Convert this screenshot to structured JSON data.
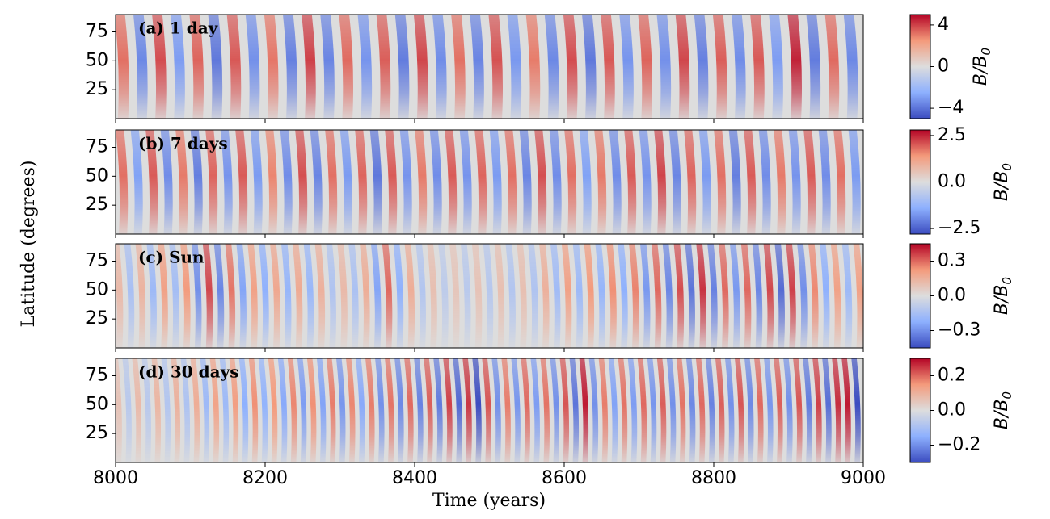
{
  "chart_data": [
    {
      "type": "heatmap",
      "title": "(a) 1 day",
      "x": [
        8010,
        8035,
        8060,
        8085,
        8110,
        8135,
        8160,
        8185,
        8210,
        8235,
        8260,
        8285,
        8310,
        8335,
        8360,
        8385,
        8410,
        8435,
        8460,
        8485,
        8510,
        8535,
        8560,
        8585,
        8610,
        8635,
        8660,
        8685,
        8710,
        8735,
        8760,
        8785,
        8810,
        8835,
        8860,
        8885,
        8910,
        8935,
        8960,
        8985
      ],
      "values": [
        3.2,
        -3.5,
        3.8,
        -3.0,
        3.4,
        -3.9,
        3.6,
        -3.3,
        3.1,
        -3.7,
        4.0,
        -3.6,
        3.3,
        -3.2,
        3.5,
        -3.8,
        3.9,
        -3.4,
        3.2,
        -3.6,
        3.7,
        -3.1,
        3.0,
        -3.5,
        3.8,
        -3.9,
        3.6,
        -3.2,
        3.4,
        -3.3,
        3.9,
        -3.7,
        3.5,
        -3.4,
        3.6,
        -3.0,
        4.5,
        -3.8,
        3.3,
        -3.5
      ],
      "xlim": [
        8000,
        9000
      ],
      "xticks": [
        8000,
        8200,
        8400,
        8600,
        8800,
        9000
      ],
      "xticklabels": false,
      "ylim": [
        0,
        90
      ],
      "yticks": [
        25,
        50,
        75
      ],
      "clim": [
        -5,
        5
      ],
      "cticks": [
        {
          "value": -4,
          "label": "−4"
        },
        0,
        4
      ],
      "clabel": "B/B",
      "clabel_sub": "0",
      "colormap": [
        "#3b4cc0",
        "#8db0fe",
        "#dddddd",
        "#f49a7b",
        "#b40426"
      ]
    },
    {
      "type": "heatmap",
      "title": "(b) 7 days",
      "x": [
        8010,
        8030,
        8050,
        8070,
        8090,
        8110,
        8130,
        8150,
        8170,
        8190,
        8210,
        8230,
        8250,
        8270,
        8290,
        8310,
        8330,
        8350,
        8370,
        8390,
        8410,
        8430,
        8450,
        8470,
        8490,
        8510,
        8530,
        8550,
        8570,
        8590,
        8610,
        8630,
        8650,
        8670,
        8690,
        8710,
        8730,
        8750,
        8770,
        8790,
        8810,
        8830,
        8850,
        8870,
        8890,
        8910,
        8930,
        8950,
        8970,
        8990
      ],
      "values": [
        1.8,
        -1.6,
        2.0,
        -1.9,
        1.7,
        -2.1,
        1.9,
        -1.8,
        2.0,
        -1.7,
        1.6,
        -1.9,
        2.1,
        -2.0,
        1.8,
        -1.7,
        1.9,
        -2.2,
        2.0,
        -1.8,
        1.7,
        -1.9,
        2.0,
        -1.8,
        1.9,
        -1.7,
        1.8,
        -2.0,
        2.1,
        -1.9,
        1.8,
        -1.6,
        1.7,
        -1.9,
        2.0,
        -1.8,
        2.2,
        -2.0,
        1.9,
        -1.7,
        1.8,
        -2.1,
        2.0,
        -1.9,
        1.7,
        -1.8,
        2.0,
        -1.9,
        1.8,
        -1.7
      ],
      "xlim": [
        8000,
        9000
      ],
      "xticks": [
        8000,
        8200,
        8400,
        8600,
        8800,
        9000
      ],
      "xticklabels": false,
      "ylim": [
        0,
        90
      ],
      "yticks": [
        25,
        50,
        75
      ],
      "clim": [
        -2.8,
        2.8
      ],
      "cticks": [
        {
          "value": -2.5,
          "label": "−2.5"
        },
        {
          "value": 0,
          "label": "0.0"
        },
        2.5
      ],
      "clabel": "B/B",
      "clabel_sub": "0",
      "colormap": [
        "#3b4cc0",
        "#8db0fe",
        "#dddddd",
        "#f49a7b",
        "#b40426"
      ]
    },
    {
      "type": "heatmap",
      "title": "(c) Sun",
      "x": [
        8005,
        8020,
        8035,
        8050,
        8065,
        8080,
        8095,
        8110,
        8125,
        8140,
        8155,
        8170,
        8185,
        8200,
        8215,
        8230,
        8245,
        8260,
        8275,
        8290,
        8305,
        8320,
        8335,
        8350,
        8365,
        8380,
        8395,
        8410,
        8425,
        8440,
        8455,
        8470,
        8485,
        8500,
        8515,
        8530,
        8545,
        8560,
        8575,
        8590,
        8605,
        8620,
        8635,
        8650,
        8665,
        8680,
        8695,
        8710,
        8725,
        8740,
        8755,
        8770,
        8785,
        8800,
        8815,
        8830,
        8845,
        8860,
        8875,
        8890,
        8905,
        8920,
        8935,
        8950,
        8965,
        8980,
        8995
      ],
      "values": [
        0.12,
        -0.15,
        0.14,
        -0.18,
        0.2,
        -0.16,
        0.22,
        -0.3,
        0.35,
        -0.32,
        0.28,
        -0.25,
        0.2,
        -0.22,
        0.18,
        -0.2,
        0.17,
        -0.19,
        0.15,
        -0.13,
        0.12,
        -0.14,
        0.16,
        -0.25,
        0.3,
        -0.22,
        0.16,
        -0.12,
        0.1,
        -0.09,
        0.08,
        -0.1,
        0.09,
        -0.11,
        0.1,
        -0.12,
        0.1,
        -0.13,
        0.15,
        -0.17,
        0.2,
        -0.18,
        0.22,
        -0.2,
        0.24,
        -0.22,
        0.26,
        -0.28,
        0.3,
        -0.32,
        0.34,
        -0.36,
        0.38,
        -0.33,
        0.3,
        -0.28,
        0.3,
        -0.32,
        0.35,
        -0.38,
        0.36,
        -0.3,
        0.25,
        -0.22,
        0.2,
        -0.18,
        0.2
      ],
      "xlim": [
        8000,
        9000
      ],
      "xticks": [
        8000,
        8200,
        8400,
        8600,
        8800,
        9000
      ],
      "xticklabels": false,
      "ylim": [
        0,
        90
      ],
      "yticks": [
        25,
        50,
        75
      ],
      "clim": [
        -0.45,
        0.45
      ],
      "cticks": [
        {
          "value": -0.3,
          "label": "−0.3"
        },
        {
          "value": 0,
          "label": "0.0"
        },
        0.3
      ],
      "clabel": "B/B",
      "clabel_sub": "0",
      "colormap": [
        "#3b4cc0",
        "#8db0fe",
        "#dddddd",
        "#f49a7b",
        "#b40426"
      ]
    },
    {
      "type": "heatmap",
      "title": "(d) 30 days",
      "x": [
        8004,
        8017,
        8030,
        8043,
        8056,
        8069,
        8082,
        8095,
        8108,
        8121,
        8134,
        8147,
        8160,
        8173,
        8186,
        8199,
        8212,
        8225,
        8238,
        8251,
        8264,
        8277,
        8290,
        8303,
        8316,
        8329,
        8342,
        8355,
        8368,
        8381,
        8394,
        8407,
        8420,
        8433,
        8446,
        8459,
        8472,
        8485,
        8498,
        8511,
        8524,
        8537,
        8550,
        8563,
        8576,
        8589,
        8602,
        8615,
        8628,
        8641,
        8654,
        8667,
        8680,
        8693,
        8706,
        8719,
        8732,
        8745,
        8758,
        8771,
        8784,
        8797,
        8810,
        8823,
        8836,
        8849,
        8862,
        8875,
        8888,
        8901,
        8914,
        8927,
        8940,
        8953,
        8966,
        8979,
        8992
      ],
      "values": [
        0.06,
        -0.07,
        0.08,
        -0.07,
        0.09,
        -0.08,
        0.1,
        -0.09,
        0.11,
        -0.12,
        0.13,
        -0.12,
        0.14,
        -0.15,
        0.16,
        -0.14,
        0.15,
        -0.16,
        0.17,
        -0.18,
        0.16,
        -0.17,
        0.18,
        -0.19,
        0.17,
        -0.16,
        0.18,
        -0.2,
        0.19,
        -0.21,
        0.2,
        -0.22,
        0.21,
        -0.23,
        0.24,
        -0.26,
        0.25,
        -0.3,
        0.22,
        -0.2,
        0.18,
        -0.19,
        0.2,
        -0.18,
        0.19,
        -0.2,
        0.22,
        -0.24,
        0.28,
        -0.2,
        0.18,
        -0.17,
        0.19,
        -0.18,
        0.2,
        -0.19,
        0.21,
        -0.2,
        0.19,
        -0.21,
        0.2,
        -0.22,
        0.21,
        -0.2,
        0.22,
        -0.21,
        0.2,
        -0.19,
        0.21,
        -0.2,
        0.22,
        -0.23,
        0.24,
        -0.25,
        0.26,
        0.28,
        -0.3
      ],
      "xlim": [
        8000,
        9000
      ],
      "xticks": [
        8000,
        8200,
        8400,
        8600,
        8800,
        9000
      ],
      "xticklabels": true,
      "ylim": [
        0,
        90
      ],
      "yticks": [
        25,
        50,
        75
      ],
      "clim": [
        -0.3,
        0.3
      ],
      "cticks": [
        {
          "value": -0.2,
          "label": "−0.2"
        },
        {
          "value": 0,
          "label": "0.0"
        },
        0.2
      ],
      "clabel": "B/B",
      "clabel_sub": "0",
      "colormap": [
        "#3b4cc0",
        "#8db0fe",
        "#dddddd",
        "#f49a7b",
        "#b40426"
      ]
    }
  ],
  "xlabel": "Time (years)",
  "ylabel": "Latitude (degrees)"
}
